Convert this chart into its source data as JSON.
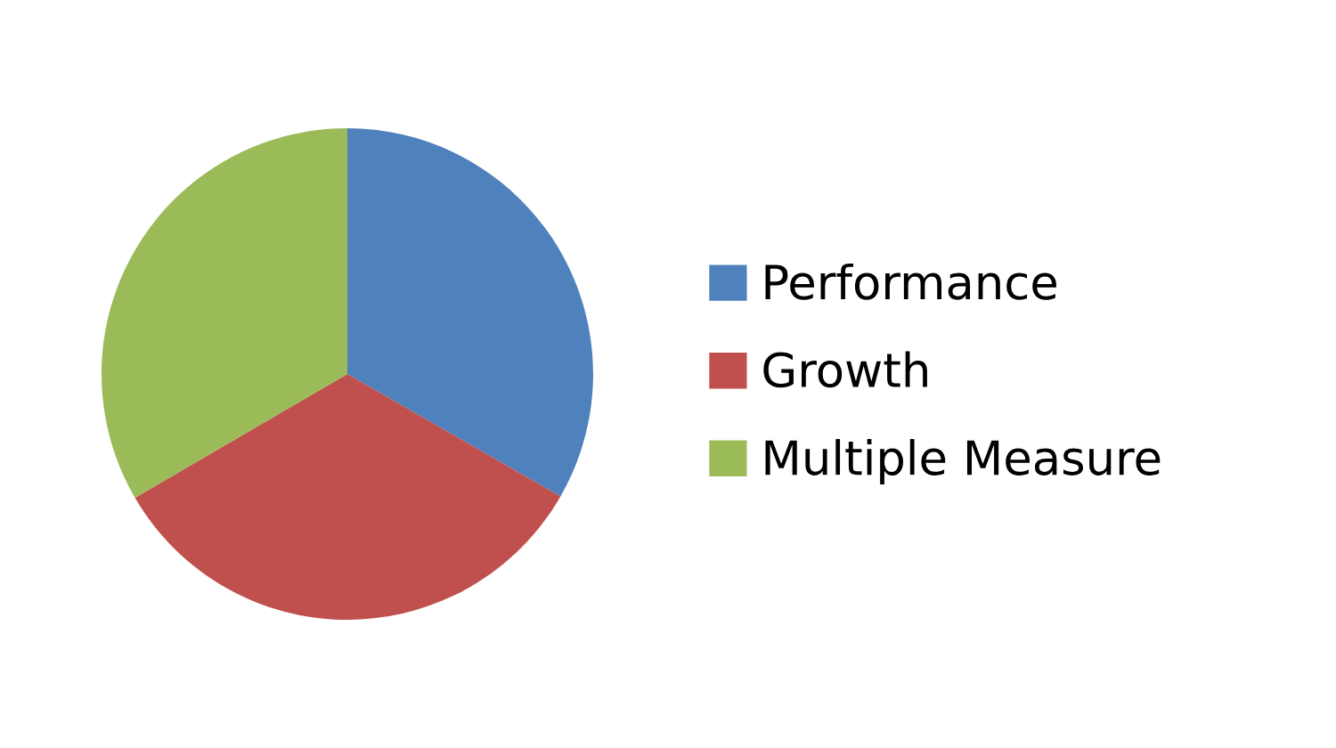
{
  "chart_data": {
    "type": "pie",
    "categories": [
      "Performance",
      "Growth",
      "Multiple Measure"
    ],
    "values": [
      33.3,
      33.3,
      33.4
    ],
    "colors": [
      "#4f81bd",
      "#c0504d",
      "#9bbb59"
    ],
    "legend": "right"
  }
}
